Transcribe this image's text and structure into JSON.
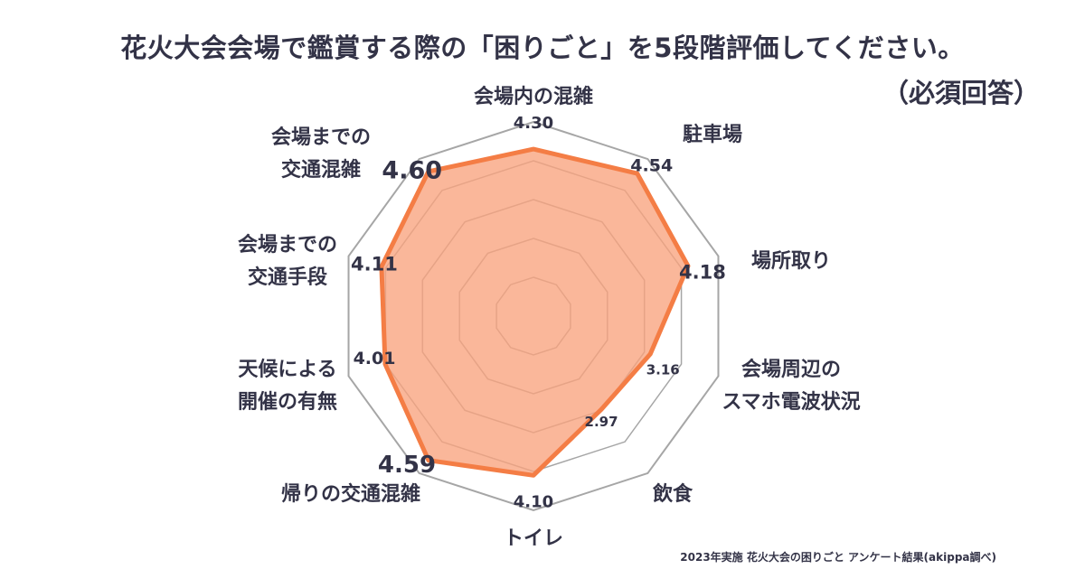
{
  "title": "花火大会会場で鑑賞する際の「困りごと」を5段階評価してください。",
  "subtitle": "（必須回答）",
  "footer": "2023年実施 花火大会の困りごと アンケート結果(akippa調べ)",
  "colors": {
    "fill": "#f9a37e",
    "stroke": "#f47d45",
    "grid": "#a6a6a6",
    "text": "#333347"
  },
  "chart_data": {
    "type": "radar",
    "categories": [
      "会場内の混雑",
      "駐車場",
      "場所取り",
      "会場周辺のスマホ電波状況",
      "飲食",
      "トイレ",
      "帰りの交通混雑",
      "天候による開催の有無",
      "会場までの交通手段",
      "会場までの交通混雑"
    ],
    "category_display": [
      [
        "会場内の混雑"
      ],
      [
        "駐車場"
      ],
      [
        "場所取り"
      ],
      [
        "会場周辺の",
        "スマホ電波状況"
      ],
      [
        "飲食"
      ],
      [
        "トイレ"
      ],
      [
        "帰りの交通混雑"
      ],
      [
        "天候による",
        "開催の有無"
      ],
      [
        "会場までの",
        "交通手段"
      ],
      [
        "会場までの",
        "交通混雑"
      ]
    ],
    "values": [
      4.3,
      4.54,
      4.18,
      3.16,
      2.97,
      4.1,
      4.59,
      4.01,
      4.11,
      4.6
    ],
    "value_labels": [
      "4.30",
      "4.54",
      "4.18",
      "3.16",
      "2.97",
      "4.10",
      "4.59",
      "4.01",
      "4.11",
      "4.60"
    ],
    "range": [
      0,
      5
    ],
    "grid": true
  }
}
